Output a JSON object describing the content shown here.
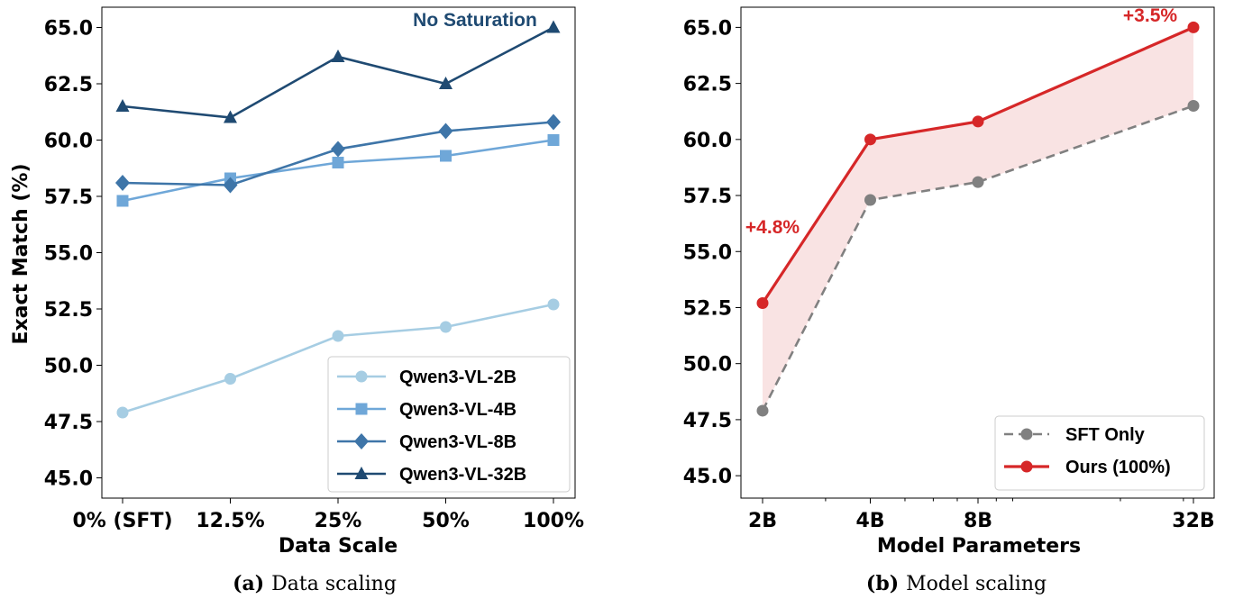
{
  "captions": [
    {
      "tag": "(a)",
      "text": "Data scaling"
    },
    {
      "tag": "(b)",
      "text": "Model scaling"
    }
  ],
  "chart_data": [
    {
      "type": "line",
      "title": "",
      "xlabel": "Data Scale",
      "ylabel": "Exact Match (%)",
      "categories": [
        "0% (SFT)",
        "12.5%",
        "25%",
        "50%",
        "100%"
      ],
      "ylim": [
        44.1,
        65.9
      ],
      "yticks": [
        "45.0",
        "47.5",
        "50.0",
        "52.5",
        "55.0",
        "57.5",
        "60.0",
        "62.5",
        "65.0"
      ],
      "grid": false,
      "legend_position": "bottom-right",
      "series": [
        {
          "name": "Qwen3-VL-2B",
          "values": [
            47.9,
            49.4,
            51.3,
            51.7,
            52.7
          ],
          "color": "#a6cde3",
          "marker": "circle"
        },
        {
          "name": "Qwen3-VL-4B",
          "values": [
            57.3,
            58.3,
            59.0,
            59.3,
            60.0
          ],
          "color": "#6fa7d8",
          "marker": "square"
        },
        {
          "name": "Qwen3-VL-8B",
          "values": [
            58.1,
            58.0,
            59.6,
            60.4,
            60.8
          ],
          "color": "#3e75a8",
          "marker": "diamond"
        },
        {
          "name": "Qwen3-VL-32B",
          "values": [
            61.5,
            61.0,
            63.7,
            62.5,
            65.0
          ],
          "color": "#1f4a72",
          "marker": "triangle"
        }
      ],
      "annotations": [
        {
          "text": "No Saturation",
          "color": "#1f4a72"
        }
      ]
    },
    {
      "type": "line",
      "title": "",
      "xlabel": "Model Parameters",
      "ylabel": "",
      "x_scale": "log",
      "categories": [
        "2B",
        "4B",
        "8B",
        "32B"
      ],
      "x": [
        2,
        4,
        8,
        32
      ],
      "ylim": [
        44.0,
        65.9
      ],
      "yticks": [
        "45.0",
        "47.5",
        "50.0",
        "52.5",
        "55.0",
        "57.5",
        "60.0",
        "62.5",
        "65.0"
      ],
      "grid": false,
      "legend_position": "bottom-right",
      "series": [
        {
          "name": "SFT Only",
          "values": [
            47.9,
            57.3,
            58.1,
            61.5
          ],
          "color": "#808080",
          "style": "dashed"
        },
        {
          "name": "Ours (100%)",
          "values": [
            52.7,
            60.0,
            60.8,
            65.0
          ],
          "color": "#d62728",
          "style": "solid"
        }
      ],
      "fill_between_color": "#f9e3e3",
      "annotations": [
        {
          "text": "+4.8%",
          "color": "#d62728"
        },
        {
          "text": "+3.5%",
          "color": "#d62728"
        }
      ]
    }
  ]
}
